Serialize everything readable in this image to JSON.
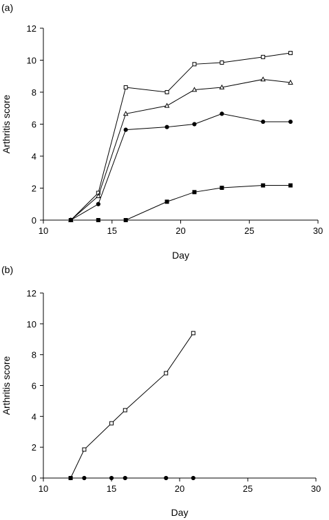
{
  "chart_data": [
    {
      "panel_label": "(a)",
      "type": "line",
      "xlabel": "Day",
      "ylabel": "Arthritis score",
      "xlim": [
        10,
        30
      ],
      "ylim": [
        0,
        12
      ],
      "xticks": [
        10,
        15,
        20,
        25,
        30
      ],
      "yticks": [
        0,
        2,
        4,
        6,
        8,
        10,
        12
      ],
      "grid": false,
      "legend": "none",
      "series": [
        {
          "marker": "open-square",
          "x": [
            12,
            14,
            16,
            19,
            21,
            23,
            26,
            28
          ],
          "y": [
            0,
            1.7,
            8.3,
            8.0,
            9.75,
            9.85,
            10.2,
            10.45
          ]
        },
        {
          "marker": "open-triangle",
          "x": [
            12,
            14,
            16,
            19,
            21,
            23,
            26,
            28
          ],
          "y": [
            0,
            1.5,
            6.65,
            7.15,
            8.15,
            8.3,
            8.8,
            8.6
          ]
        },
        {
          "marker": "filled-circle",
          "x": [
            12,
            14,
            16,
            19,
            21,
            23,
            26,
            28
          ],
          "y": [
            0,
            1.0,
            5.65,
            5.82,
            6.0,
            6.65,
            6.15,
            6.15
          ]
        },
        {
          "marker": "filled-square",
          "x": [
            12,
            14,
            16,
            19,
            21,
            23,
            26,
            28
          ],
          "y": [
            0,
            0,
            0,
            1.15,
            1.75,
            2.02,
            2.17,
            2.17
          ]
        }
      ]
    },
    {
      "panel_label": "(b)",
      "type": "line",
      "xlabel": "Day",
      "ylabel": "Arthritis score",
      "xlim": [
        10,
        30
      ],
      "ylim": [
        0,
        12
      ],
      "xticks": [
        10,
        15,
        20,
        25,
        30
      ],
      "yticks": [
        0,
        2,
        4,
        6,
        8,
        10,
        12
      ],
      "grid": false,
      "legend": "none",
      "series": [
        {
          "marker": "open-square",
          "x": [
            12,
            13,
            15,
            16,
            19,
            21
          ],
          "y": [
            0,
            1.85,
            3.55,
            4.4,
            6.8,
            9.4
          ]
        },
        {
          "marker": "filled-circle",
          "x": [
            12,
            13,
            15,
            16,
            19,
            21
          ],
          "y": [
            0,
            0,
            0,
            0,
            0,
            0
          ]
        }
      ]
    }
  ]
}
